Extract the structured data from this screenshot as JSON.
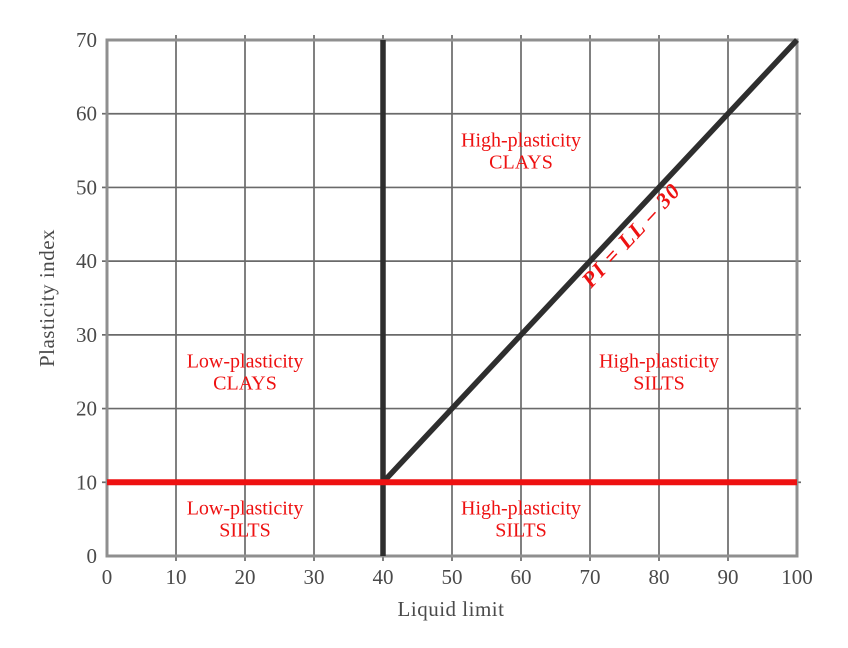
{
  "figure": {
    "background": "#ffffff"
  },
  "chart_data": {
    "type": "line",
    "title": "",
    "xlabel": "Liquid limit",
    "ylabel": "Plasticity index",
    "xlim": [
      0,
      100
    ],
    "ylim": [
      0,
      70
    ],
    "x_ticks": [
      0,
      10,
      20,
      30,
      40,
      50,
      60,
      70,
      80,
      90,
      100
    ],
    "y_ticks": [
      0,
      10,
      20,
      30,
      40,
      50,
      60,
      70
    ],
    "grid": true,
    "legend": "none",
    "colors": {
      "boundary_dark": "#2e2e2e",
      "boundary_red": "#ee1111",
      "grid": "#6a6a6a",
      "border": "#8f8f8f",
      "axis_text": "#4a4a4a",
      "region_text": "#ee1111"
    },
    "series": [
      {
        "id": "vertical-boundary-line",
        "name": "LL = 40 boundary",
        "color_key": "boundary_dark",
        "width": 5.5,
        "points": [
          [
            40,
            0
          ],
          [
            40,
            70
          ]
        ]
      },
      {
        "id": "diagonal-boundary-line",
        "name": "PI = LL - 30 boundary",
        "color_key": "boundary_dark",
        "width": 5.5,
        "points": [
          [
            40,
            10
          ],
          [
            100,
            70
          ]
        ]
      },
      {
        "id": "horizontal-boundary-line",
        "name": "PI = 10 boundary",
        "color_key": "boundary_red",
        "width": 6,
        "points": [
          [
            0,
            10
          ],
          [
            100,
            10
          ]
        ]
      }
    ],
    "annotations": [
      {
        "id": "region-high-plasticity-clays",
        "lines": [
          "High-plasticity",
          "CLAYS"
        ],
        "x": 60,
        "y": 55,
        "rotate": 0,
        "style": "region"
      },
      {
        "id": "region-low-plasticity-clays",
        "lines": [
          "Low-plasticity",
          "CLAYS"
        ],
        "x": 20,
        "y": 25,
        "rotate": 0,
        "style": "region"
      },
      {
        "id": "region-high-plasticity-silts-right",
        "lines": [
          "High-plasticity",
          "SILTS"
        ],
        "x": 80,
        "y": 25,
        "rotate": 0,
        "style": "region"
      },
      {
        "id": "region-low-plasticity-silts-bottom",
        "lines": [
          "Low-plasticity",
          "SILTS"
        ],
        "x": 20,
        "y": 5.1,
        "rotate": 0,
        "style": "region"
      },
      {
        "id": "region-high-plasticity-silts-bottom",
        "lines": [
          "High-plasticity",
          "SILTS"
        ],
        "x": 60,
        "y": 5.1,
        "rotate": 0,
        "style": "region"
      },
      {
        "id": "equation-label",
        "lines": [
          "PI = LL – 30"
        ],
        "x": 76,
        "y": 43.5,
        "rotate": -47,
        "style": "equation"
      }
    ]
  }
}
